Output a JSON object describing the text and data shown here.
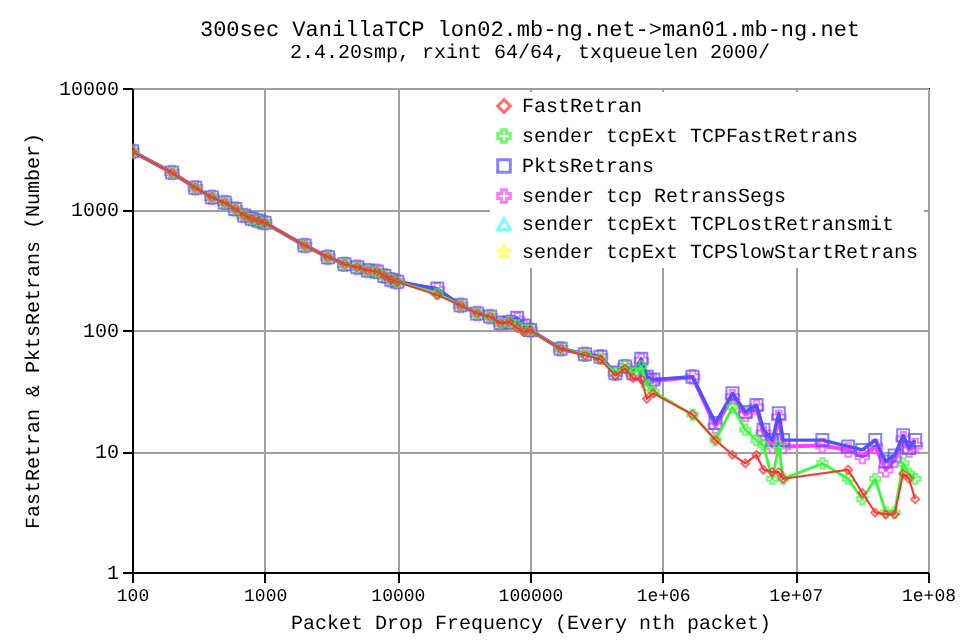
{
  "chart_data": {
    "type": "line",
    "title": "300sec VanillaTCP lon02.mb-ng.net->man01.mb-ng.net",
    "subtitle": "2.4.20smp, rxint 64/64, txqueuelen 2000/",
    "xlabel": "Packet Drop Frequency (Every nth packet)",
    "ylabel": "FastRetran & PktsRetrans (Number)",
    "log": "xy",
    "grid": true,
    "legend": "top right",
    "xlim": [
      100,
      100000000
    ],
    "xticks": [
      100,
      1000,
      10000,
      100000,
      {
        "value": 1000000,
        "label": "1e+06"
      },
      {
        "value": 10000000,
        "label": "1e+07"
      },
      {
        "value": 100000000,
        "label": "1e+08"
      }
    ],
    "ylim": [
      1,
      10000
    ],
    "yticks": [
      1,
      10,
      100,
      1000,
      10000
    ],
    "x": [
      100,
      200,
      300,
      400,
      500,
      600,
      700,
      800,
      900,
      1000,
      2000,
      3000,
      4000,
      5000,
      6000,
      7000,
      8000,
      9000,
      10000,
      20000,
      30000,
      40000,
      50000,
      60000,
      70000,
      80000,
      90000,
      100000,
      170000,
      260000,
      340000,
      440000,
      520000,
      600000,
      690000,
      760000,
      850000,
      1680000,
      2500000,
      3360000,
      4200000,
      5100000,
      5750000,
      6700000,
      7500000,
      8100000,
      16000000,
      25000000,
      32000000,
      40000000,
      48000000,
      56000000,
      65000000,
      72000000,
      80000000
    ],
    "series": [
      {
        "name": "FastRetran",
        "color": "#ff3030",
        "marker": "diamond",
        "x": [
          100,
          200,
          300,
          400,
          500,
          600,
          700,
          800,
          900,
          1000,
          2000,
          3000,
          4000,
          5000,
          6000,
          7000,
          8000,
          9000,
          10000,
          20000,
          30000,
          40000,
          50000,
          60000,
          70000,
          80000,
          90000,
          100000,
          170000,
          260000,
          340000,
          440000,
          520000,
          600000,
          690000,
          760000,
          850000,
          1680000,
          2500000,
          3360000,
          4200000,
          5100000,
          5750000,
          6700000,
          7500000,
          8100000,
          25000000,
          32000000,
          40000000,
          48000000,
          56000000,
          65000000,
          72000000,
          80000000
        ],
        "values": [
          3000,
          2000,
          1500,
          1250,
          1130,
          1000,
          885,
          830,
          800,
          770,
          500,
          400,
          350,
          330,
          310,
          305,
          280,
          260,
          250,
          194,
          160,
          137,
          129,
          114,
          116,
          104,
          96,
          100,
          70,
          62,
          57,
          42,
          48,
          40,
          39,
          27,
          30,
          20,
          12.3,
          9.3,
          7.9,
          9.3,
          7,
          6.7,
          6.7,
          5.9,
          7,
          4.5,
          3.1,
          3,
          3,
          6.5,
          5.9,
          4
        ]
      },
      {
        "name": "sender tcpExt TCPFastRetrans",
        "color": "#30ff30",
        "marker": "cross",
        "values": [
          3000,
          2000,
          1500,
          1250,
          1130,
          1000,
          885,
          830,
          800,
          770,
          500,
          400,
          350,
          330,
          310,
          305,
          280,
          260,
          250,
          200,
          160,
          137,
          129,
          114,
          116,
          110,
          100,
          100,
          70,
          63,
          58,
          44,
          50,
          44,
          50,
          35,
          31,
          20,
          12.3,
          23,
          15,
          12.3,
          11.1,
          5.9,
          10.9,
          5.9,
          7.9,
          5.9,
          4,
          5.9,
          3.1,
          3.1,
          7.9,
          6.5,
          5.9
        ]
      },
      {
        "name": "PktsRetrans",
        "color": "#5050ff",
        "marker": "square",
        "values": [
          3000,
          2000,
          1500,
          1250,
          1130,
          1000,
          885,
          830,
          800,
          770,
          500,
          400,
          350,
          330,
          310,
          305,
          280,
          260,
          250,
          220,
          160,
          137,
          129,
          114,
          116,
          126,
          109,
          100,
          70,
          63,
          60,
          44,
          50,
          44,
          58,
          41,
          39,
          41,
          17,
          30,
          21,
          24,
          15,
          12.3,
          20.5,
          12.3,
          12.3,
          10.9,
          10.2,
          12.3,
          8.2,
          9.2,
          13.5,
          10.6,
          12.3
        ]
      },
      {
        "name": "sender tcp RetransSegs",
        "color": "#ff40ff",
        "marker": "cross",
        "values": [
          3000,
          2000,
          1500,
          1250,
          1130,
          1000,
          885,
          830,
          800,
          770,
          500,
          400,
          350,
          330,
          310,
          305,
          280,
          260,
          250,
          215,
          160,
          137,
          129,
          114,
          116,
          122,
          106,
          100,
          70,
          63,
          60,
          44,
          50,
          44,
          56,
          40,
          38,
          41,
          16,
          28,
          20,
          23,
          14,
          10.9,
          19,
          10.9,
          11.1,
          10.2,
          9,
          10.9,
          7,
          8.4,
          12.6,
          10.2,
          11.1
        ]
      },
      {
        "name": "sender tcpExt TCPLostRetransmit",
        "color": "#40ffff",
        "marker": "triangle",
        "values": [
          null,
          null,
          null,
          null,
          null,
          null,
          null,
          null,
          null,
          null,
          null,
          null,
          null,
          null,
          null,
          null,
          null,
          null,
          null,
          null,
          null,
          null,
          null,
          null,
          null,
          null,
          null,
          null,
          null,
          null,
          null,
          null,
          null,
          null,
          null,
          null,
          null,
          null,
          null,
          null,
          null,
          null,
          null,
          null,
          null,
          null,
          null,
          null,
          null,
          null,
          null,
          null,
          null,
          null,
          null
        ]
      },
      {
        "name": "sender tcpExt TCPSlowStartRetrans",
        "color": "#ffff40",
        "marker": "star",
        "values": [
          null,
          null,
          null,
          null,
          null,
          null,
          null,
          null,
          null,
          null,
          null,
          null,
          null,
          null,
          null,
          null,
          null,
          null,
          null,
          null,
          null,
          null,
          null,
          null,
          null,
          null,
          null,
          null,
          null,
          null,
          null,
          null,
          null,
          null,
          null,
          null,
          null,
          null,
          null,
          null,
          null,
          null,
          null,
          null,
          null,
          null,
          null,
          null,
          null,
          null,
          null,
          null,
          null,
          null,
          null
        ]
      }
    ]
  }
}
